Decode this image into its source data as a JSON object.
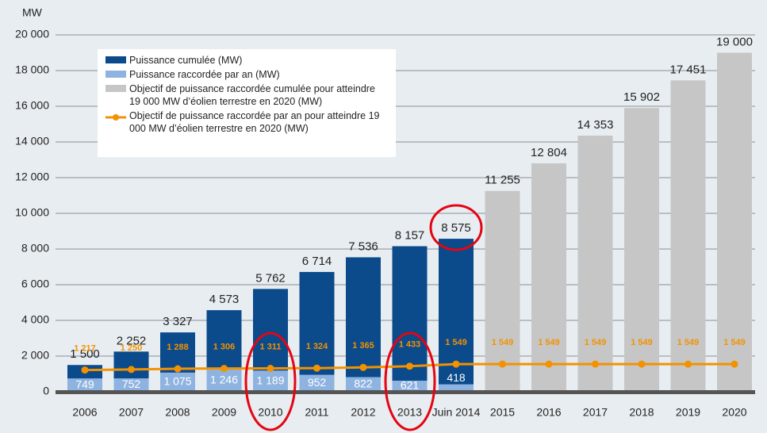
{
  "chart_data": {
    "type": "bar",
    "y_axis_label": "MW",
    "categories": [
      "2006",
      "2007",
      "2008",
      "2009",
      "2010",
      "2011",
      "2012",
      "2013",
      "Juin 2014",
      "2015",
      "2016",
      "2017",
      "2018",
      "2019",
      "2020"
    ],
    "series": [
      {
        "name": "Puissance cumulée (MW)",
        "type": "bar",
        "color": "#0b4a8b",
        "values": [
          1500,
          2252,
          3327,
          4573,
          5762,
          6714,
          7536,
          8157,
          8575,
          null,
          null,
          null,
          null,
          null,
          null
        ],
        "value_labels": [
          "1 500",
          "2 252",
          "3 327",
          "4 573",
          "5 762",
          "6 714",
          "7 536",
          "8 157",
          "8 575",
          null,
          null,
          null,
          null,
          null,
          null
        ]
      },
      {
        "name": "Puissance raccordée par an (MW)",
        "type": "bar",
        "color": "#8eb3e0",
        "values": [
          749,
          752,
          1075,
          1246,
          1189,
          952,
          822,
          621,
          418,
          null,
          null,
          null,
          null,
          null,
          null
        ],
        "value_labels": [
          "749",
          "752",
          "1 075",
          "1 246",
          "1 189",
          "952",
          "822",
          "621",
          "418",
          null,
          null,
          null,
          null,
          null,
          null
        ]
      },
      {
        "name": "Objectif de puissance raccordée cumulée pour atteindre 19 000 MW d’éolien terrestre en 2020 (MW)",
        "type": "bar",
        "color": "#c6c6c6",
        "values": [
          null,
          null,
          null,
          null,
          null,
          null,
          null,
          null,
          null,
          11255,
          12804,
          14353,
          15902,
          17451,
          19000
        ],
        "value_labels": [
          null,
          null,
          null,
          null,
          null,
          null,
          null,
          null,
          null,
          "11 255",
          "12 804",
          "14 353",
          "15 902",
          "17 451",
          "19 000"
        ]
      },
      {
        "name": "Objectif de puissance raccordée par an pour atteindre 19 000 MW d’éolien terrestre en 2020 (MW)",
        "type": "line",
        "color": "#f39200",
        "values": [
          1217,
          1250,
          1288,
          1306,
          1311,
          1324,
          1365,
          1433,
          1549,
          1549,
          1549,
          1549,
          1549,
          1549,
          1549
        ],
        "value_labels": [
          "1 217",
          "1 250",
          "1 288",
          "1 306",
          "1 311",
          "1 324",
          "1 365",
          "1 433",
          "1 549",
          "1 549",
          "1 549",
          "1 549",
          "1 549",
          "1 549",
          "1 549"
        ]
      }
    ],
    "ylim": [
      0,
      20000
    ],
    "yticks": [
      0,
      {
        "value": 2000,
        "label": "2 000"
      },
      {
        "value": 4000,
        "label": "4 000"
      },
      {
        "value": 6000,
        "label": "6 000"
      },
      {
        "value": 8000,
        "label": "8 000"
      },
      {
        "value": 10000,
        "label": "10 000"
      },
      {
        "value": 12000,
        "label": "12 000"
      },
      {
        "value": 14000,
        "label": "14 000"
      },
      {
        "value": 16000,
        "label": "16 000"
      },
      {
        "value": 18000,
        "label": "18 000"
      },
      {
        "value": 20000,
        "label": "20 000"
      }
    ],
    "grid": true
  }
}
